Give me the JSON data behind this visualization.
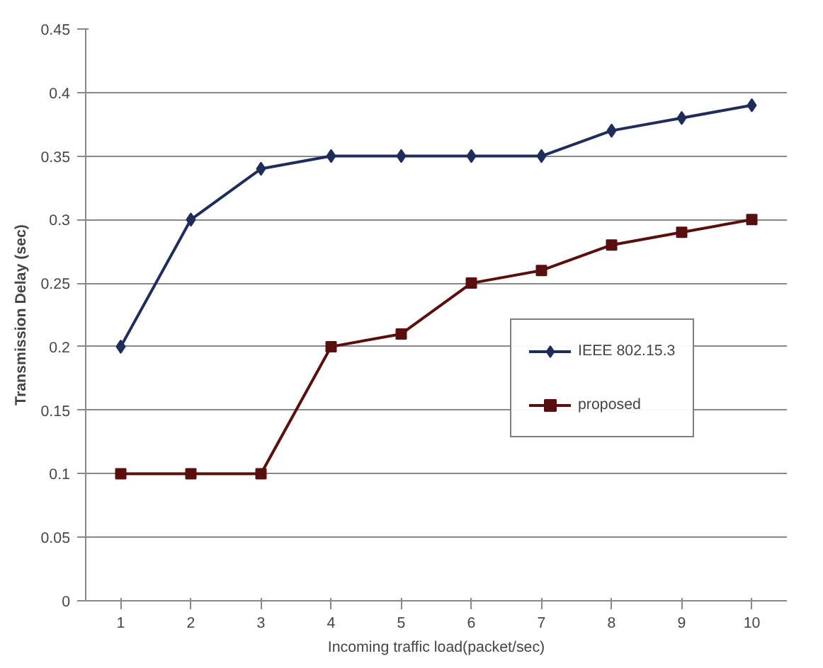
{
  "chart_data": {
    "type": "line",
    "xlabel": "Incoming traffic load(packet/sec)",
    "ylabel": "Transmission Delay (sec)",
    "categories": [
      "1",
      "2",
      "3",
      "4",
      "5",
      "6",
      "7",
      "8",
      "9",
      "10"
    ],
    "series": [
      {
        "name": "IEEE 802.15.3",
        "color": "#1f2d5a",
        "marker": "diamond",
        "values": [
          0.2,
          0.3,
          0.34,
          0.35,
          0.35,
          0.35,
          0.35,
          0.37,
          0.38,
          0.39
        ]
      },
      {
        "name": "proposed",
        "color": "#5a0f0f",
        "marker": "square",
        "values": [
          0.1,
          0.1,
          0.1,
          0.2,
          0.21,
          0.25,
          0.26,
          0.28,
          0.29,
          0.3
        ]
      }
    ],
    "ylim": [
      0,
      0.45
    ],
    "yticks": [
      0,
      0.05,
      0.1,
      0.15,
      0.2,
      0.25,
      0.3,
      0.35,
      0.4,
      0.45
    ],
    "grid": "y",
    "legend": "right",
    "line_style": "solid"
  }
}
